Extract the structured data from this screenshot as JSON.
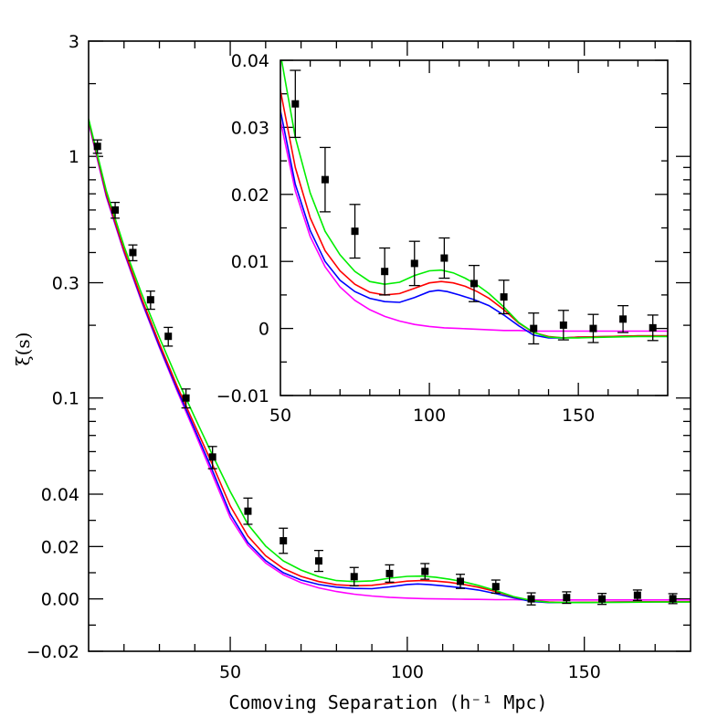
{
  "chart_data": [
    {
      "type": "scatter",
      "panel": "main",
      "xlabel": "Comoving Separation (h⁻¹ Mpc)",
      "ylabel": "ξ(s)",
      "xlim": [
        10,
        180
      ],
      "x_ticks": [
        50,
        100,
        150
      ],
      "x_tick_labels": [
        "50",
        "100",
        "150"
      ],
      "y_scale": "piecewise: linear from -0.02 to 0.04, logarithmic from 0.04 to 3",
      "ylim": [
        -0.02,
        3
      ],
      "y_ticks": [
        -0.02,
        0.0,
        0.02,
        0.04,
        0.1,
        0.3,
        1,
        3
      ],
      "y_tick_labels": [
        "−0.02",
        "0.00",
        "0.02",
        "0.04",
        "0.1",
        "0.3",
        "1",
        "3"
      ],
      "points": [
        {
          "x": 12.5,
          "y": 1.1,
          "err": 0.07
        },
        {
          "x": 17.5,
          "y": 0.6,
          "err": 0.045
        },
        {
          "x": 22.5,
          "y": 0.4,
          "err": 0.03
        },
        {
          "x": 27.5,
          "y": 0.255,
          "err": 0.022
        },
        {
          "x": 32.5,
          "y": 0.18,
          "err": 0.016
        },
        {
          "x": 37.5,
          "y": 0.1,
          "err": 0.009
        },
        {
          "x": 45,
          "y": 0.057,
          "err": 0.006
        },
        {
          "x": 55,
          "y": 0.0335,
          "err": 0.005
        },
        {
          "x": 65,
          "y": 0.0222,
          "err": 0.0048
        },
        {
          "x": 75,
          "y": 0.0145,
          "err": 0.004
        },
        {
          "x": 85,
          "y": 0.0085,
          "err": 0.0035
        },
        {
          "x": 95,
          "y": 0.0097,
          "err": 0.0033
        },
        {
          "x": 105,
          "y": 0.0105,
          "err": 0.003
        },
        {
          "x": 115,
          "y": 0.0067,
          "err": 0.0027
        },
        {
          "x": 125,
          "y": 0.0047,
          "err": 0.0025
        },
        {
          "x": 135,
          "y": 0.0,
          "err": 0.0023
        },
        {
          "x": 145,
          "y": 0.0005,
          "err": 0.0022
        },
        {
          "x": 155,
          "y": 0.0,
          "err": 0.0021
        },
        {
          "x": 165,
          "y": 0.0014,
          "err": 0.002
        },
        {
          "x": 175,
          "y": 0.0001,
          "err": 0.0019
        }
      ],
      "series": [
        {
          "color": "#ff00ff",
          "x": [
            10,
            15,
            20,
            25,
            30,
            35,
            40,
            45,
            50,
            55,
            60,
            65,
            70,
            75,
            80,
            85,
            90,
            95,
            100,
            105,
            110,
            115,
            120,
            125,
            130,
            135,
            140,
            145,
            150,
            160,
            170,
            180
          ],
          "y": [
            1.38,
            0.68,
            0.4,
            0.25,
            0.162,
            0.107,
            0.072,
            0.048,
            0.031,
            0.0205,
            0.0137,
            0.0092,
            0.0062,
            0.0042,
            0.0028,
            0.0018,
            0.0011,
            0.0006,
            0.0003,
            0.0001,
            0.0,
            -0.0001,
            -0.0002,
            -0.0003,
            -0.0003,
            -0.0004,
            -0.0004,
            -0.0004,
            -0.0004,
            -0.0004,
            -0.0004,
            -0.0004
          ]
        },
        {
          "color": "#0000ff",
          "x": [
            10,
            15,
            20,
            25,
            30,
            35,
            40,
            45,
            50,
            55,
            60,
            65,
            70,
            75,
            80,
            85,
            90,
            95,
            100,
            103,
            106,
            110,
            115,
            120,
            125,
            130,
            135,
            140,
            145,
            150,
            160,
            170,
            180
          ],
          "y": [
            1.4,
            0.69,
            0.405,
            0.253,
            0.164,
            0.109,
            0.074,
            0.05,
            0.0325,
            0.0215,
            0.0146,
            0.01,
            0.0072,
            0.0055,
            0.0045,
            0.004,
            0.0039,
            0.0046,
            0.0055,
            0.0057,
            0.0055,
            0.005,
            0.0043,
            0.0034,
            0.002,
            0.0004,
            -0.001,
            -0.0014,
            -0.0014,
            -0.0013,
            -0.0012,
            -0.0011,
            -0.0011
          ]
        },
        {
          "color": "#ff0000",
          "x": [
            10,
            15,
            20,
            25,
            30,
            35,
            40,
            45,
            50,
            55,
            60,
            65,
            70,
            75,
            80,
            85,
            90,
            95,
            100,
            104,
            108,
            112,
            116,
            120,
            125,
            130,
            135,
            140,
            145,
            150,
            160,
            170,
            180
          ],
          "y": [
            1.41,
            0.7,
            0.41,
            0.258,
            0.168,
            0.112,
            0.077,
            0.053,
            0.0355,
            0.024,
            0.0165,
            0.0116,
            0.0086,
            0.0066,
            0.0054,
            0.005,
            0.0052,
            0.006,
            0.0068,
            0.007,
            0.0068,
            0.0063,
            0.0055,
            0.0045,
            0.0028,
            0.0008,
            -0.0006,
            -0.0012,
            -0.0014,
            -0.0013,
            -0.0012,
            -0.0011,
            -0.0011
          ]
        },
        {
          "color": "#00ee00",
          "x": [
            10,
            15,
            20,
            25,
            30,
            35,
            40,
            45,
            50,
            55,
            60,
            65,
            70,
            75,
            80,
            85,
            90,
            95,
            100,
            104,
            108,
            112,
            116,
            120,
            125,
            130,
            135,
            140,
            145,
            150,
            160,
            170,
            180
          ],
          "y": [
            1.43,
            0.72,
            0.425,
            0.27,
            0.178,
            0.12,
            0.083,
            0.058,
            0.041,
            0.0285,
            0.0202,
            0.0145,
            0.011,
            0.0085,
            0.007,
            0.0066,
            0.0069,
            0.0079,
            0.0086,
            0.0087,
            0.0083,
            0.0075,
            0.0065,
            0.0052,
            0.0032,
            0.0009,
            -0.0006,
            -0.0013,
            -0.0014,
            -0.0014,
            -0.0013,
            -0.0012,
            -0.0012
          ]
        }
      ]
    },
    {
      "type": "scatter",
      "panel": "inset",
      "xlim": [
        50,
        180
      ],
      "ylim": [
        -0.01,
        0.04
      ],
      "x_ticks": [
        50,
        100,
        150
      ],
      "x_tick_labels": [
        "50",
        "100",
        "150"
      ],
      "y_ticks": [
        -0.01,
        0.0,
        0.01,
        0.02,
        0.03,
        0.04
      ],
      "y_tick_labels": [
        "−0.01",
        "0",
        "0.01",
        "0.02",
        "0.03",
        "0.04"
      ]
    }
  ]
}
